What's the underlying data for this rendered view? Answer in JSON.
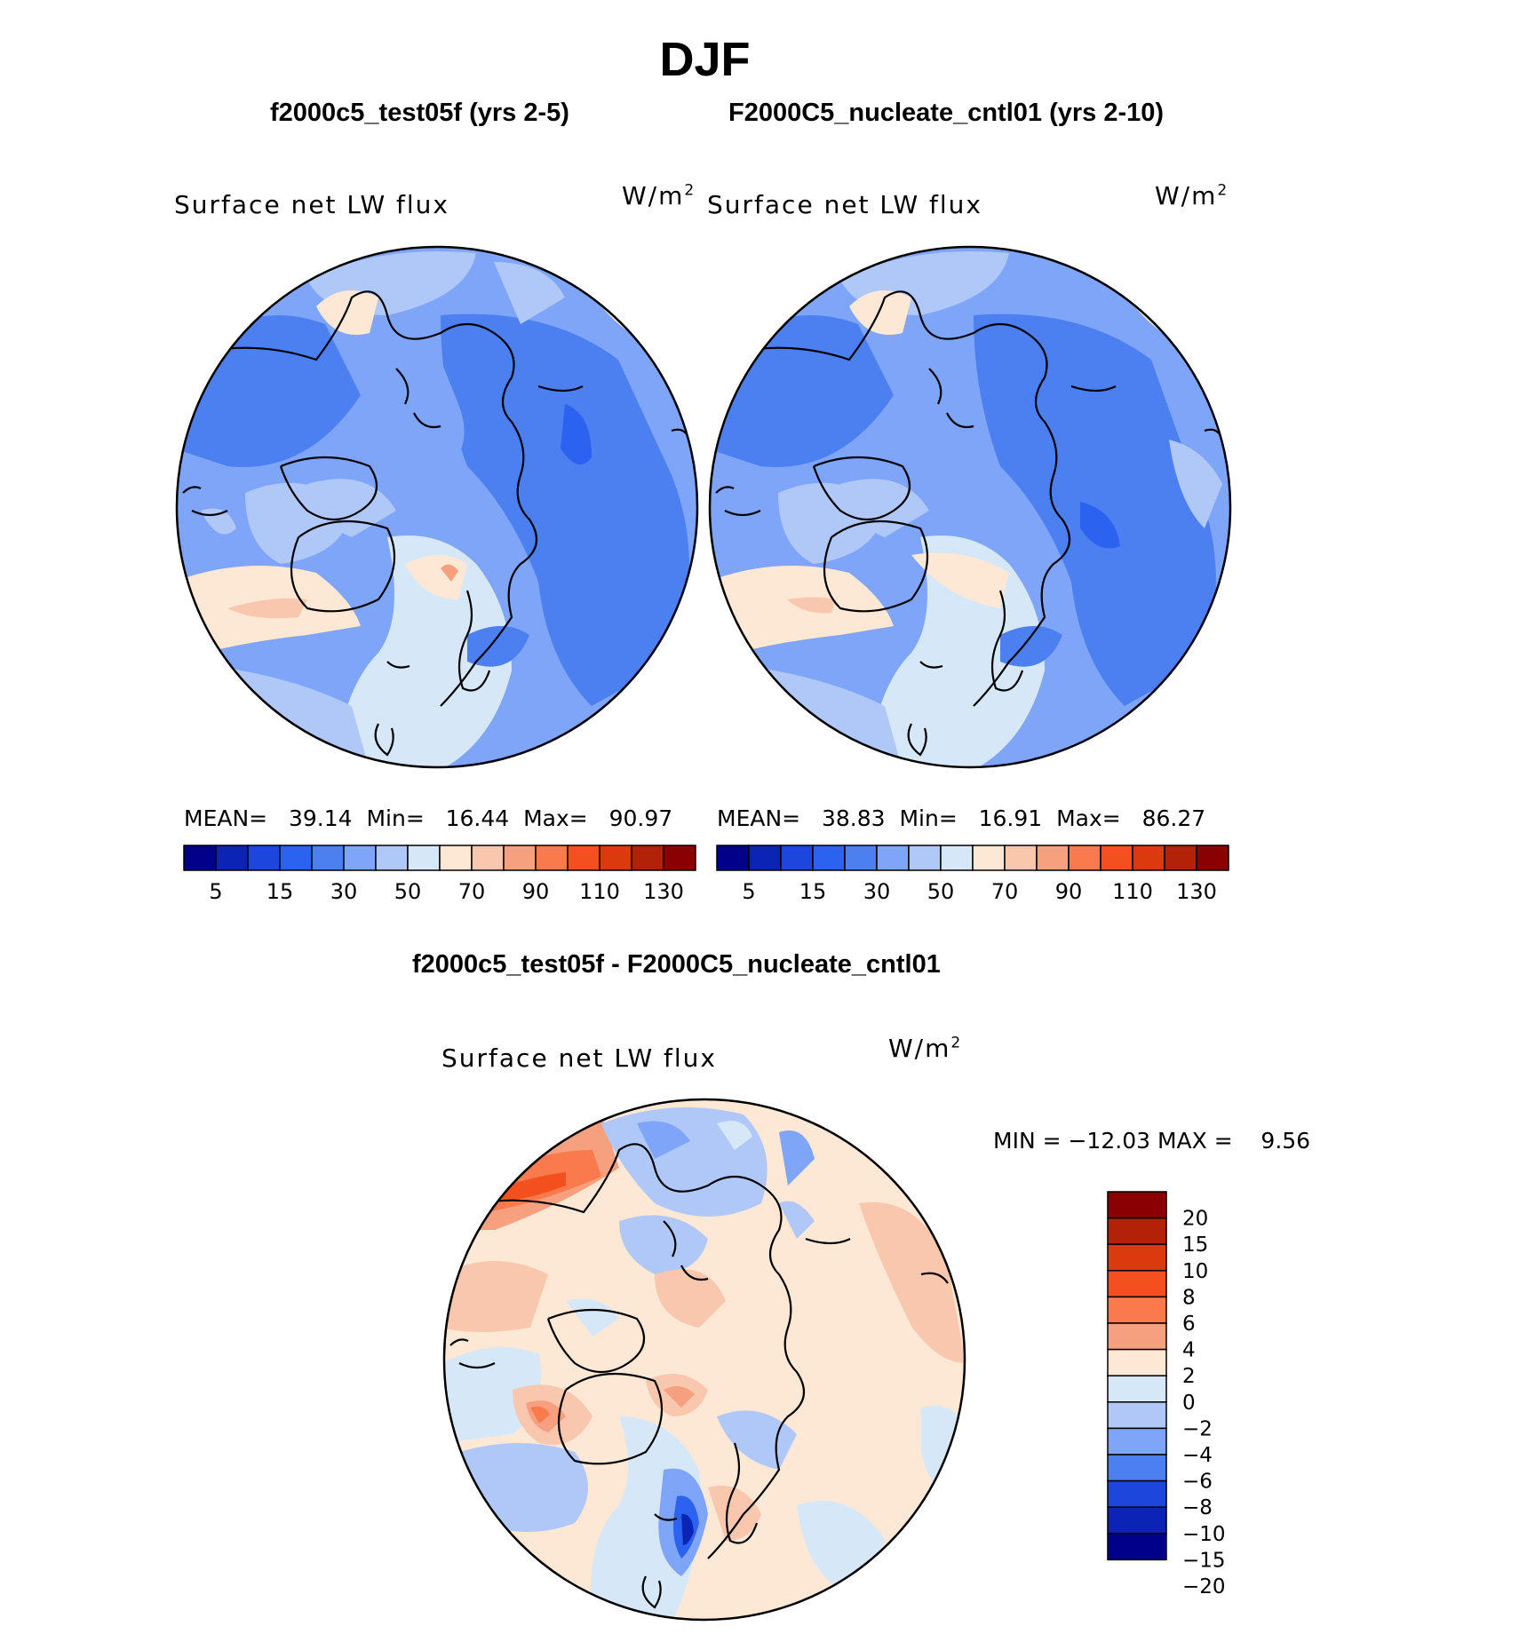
{
  "figure": {
    "title": "DJF",
    "diff_title": "f2000c5_test05f - F2000C5_nucleate_cntl01"
  },
  "panels": [
    {
      "case_title": "f2000c5_test05f (yrs 2-5)",
      "variable": "Surface net LW flux",
      "units_base": "W/m",
      "units_exp": "2",
      "stats": {
        "mean_label": "MEAN=",
        "mean": "39.14",
        "min_label": "Min=",
        "min": "16.44",
        "max_label": "Max=",
        "max": "90.97"
      }
    },
    {
      "case_title": "F2000C5_nucleate_cntl01 (yrs 2-10)",
      "variable": "Surface net LW flux",
      "units_base": "W/m",
      "units_exp": "2",
      "stats": {
        "mean_label": "MEAN=",
        "mean": "38.83",
        "min_label": "Min=",
        "min": "16.91",
        "max_label": "Max=",
        "max": "86.27"
      }
    }
  ],
  "diff_panel": {
    "variable": "Surface net LW flux",
    "units_base": "W/m",
    "units_exp": "2",
    "minmax_text": "MIN = −12.03 MAX =    9.56"
  },
  "colorbars": {
    "abs": {
      "colors": [
        "#00008b",
        "#0b24b4",
        "#1d46dc",
        "#2c62f0",
        "#4c7ff0",
        "#7ea5f8",
        "#b0c8f8",
        "#d6e8f8",
        "#fde8d6",
        "#f9c6ae",
        "#f6a07f",
        "#f97a4c",
        "#f2501f",
        "#db3a0f",
        "#b32208",
        "#8b0000"
      ],
      "labels": [
        "5",
        "15",
        "30",
        "50",
        "70",
        "90",
        "110",
        "130"
      ]
    },
    "diff": {
      "colors": [
        "#8b0000",
        "#b32208",
        "#db3a0f",
        "#f2501f",
        "#f97a4c",
        "#f6a07f",
        "#fde8d6",
        "#d6e8f8",
        "#b0c8f8",
        "#7ea5f8",
        "#4c7ff0",
        "#1d46dc",
        "#0b24b4",
        "#00008b"
      ],
      "labels": [
        "20",
        "15",
        "10",
        "8",
        "6",
        "4",
        "2",
        "0",
        "−2",
        "−4",
        "−6",
        "−8",
        "−10",
        "−15",
        "−20"
      ]
    }
  },
  "chart_data": [
    {
      "type": "heatmap",
      "title": "f2000c5_test05f (yrs 2-5)",
      "subtitle": "Surface net LW flux",
      "units": "W/m2",
      "projection": "polar stereographic (Northern Hemisphere)",
      "mean": 39.14,
      "min": 16.44,
      "max": 90.97,
      "contour_levels": [
        5,
        10,
        15,
        20,
        25,
        30,
        40,
        50,
        60,
        70,
        80,
        90,
        100,
        110,
        120,
        130
      ]
    },
    {
      "type": "heatmap",
      "title": "F2000C5_nucleate_cntl01 (yrs 2-10)",
      "subtitle": "Surface net LW flux",
      "units": "W/m2",
      "projection": "polar stereographic (Northern Hemisphere)",
      "mean": 38.83,
      "min": 16.91,
      "max": 86.27,
      "contour_levels": [
        5,
        10,
        15,
        20,
        25,
        30,
        40,
        50,
        60,
        70,
        80,
        90,
        100,
        110,
        120,
        130
      ]
    },
    {
      "type": "heatmap",
      "title": "f2000c5_test05f - F2000C5_nucleate_cntl01",
      "subtitle": "Surface net LW flux",
      "units": "W/m2",
      "projection": "polar stereographic (Northern Hemisphere)",
      "min": -12.03,
      "max": 9.56,
      "contour_levels": [
        -20,
        -15,
        -10,
        -8,
        -6,
        -4,
        -2,
        0,
        2,
        4,
        6,
        8,
        10,
        15,
        20
      ]
    }
  ]
}
